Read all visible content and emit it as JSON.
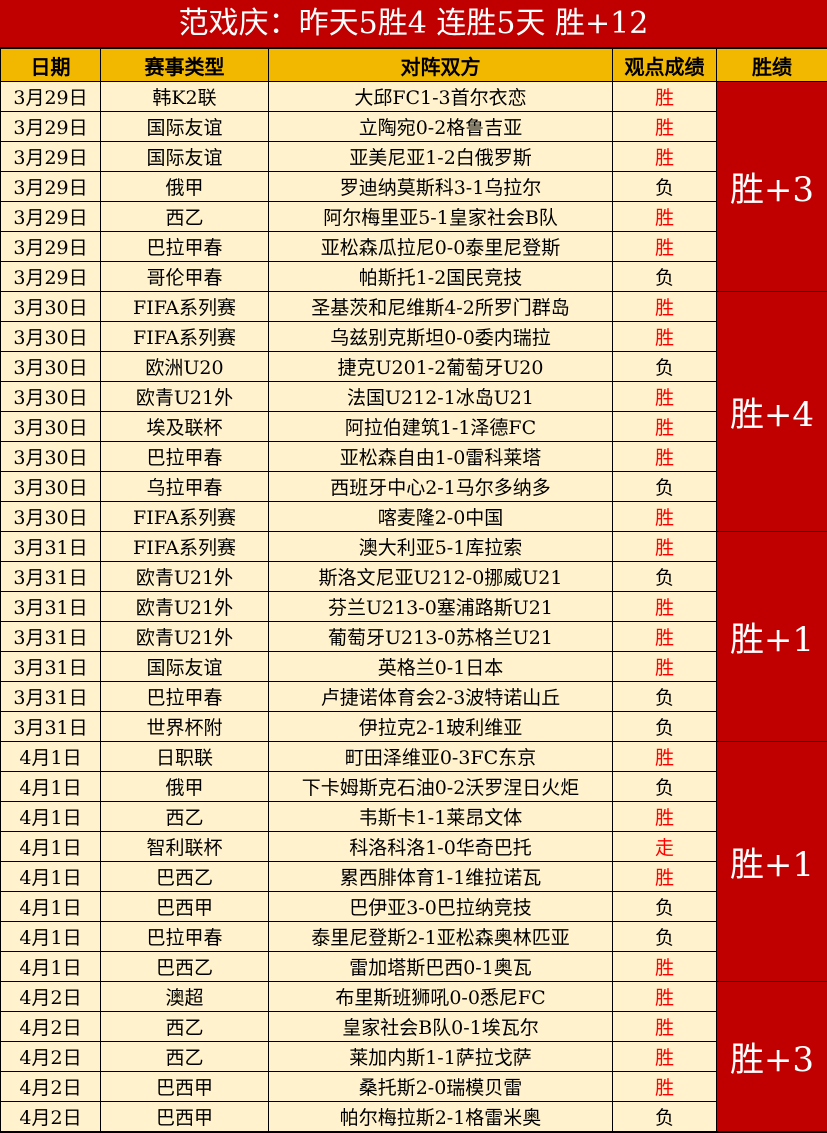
{
  "title": "范戏庆：昨天5胜4  连胜5天  胜+12",
  "headers": [
    "日期",
    "赛事类型",
    "对阵双方",
    "观点成绩",
    "胜绩"
  ],
  "colors": {
    "title_bg": "#c00000",
    "header_bg": "#f2b800",
    "row_bg": "#fff2cc",
    "win_text": "#ff0000"
  },
  "rows": [
    [
      "3月29日",
      "韩K2联",
      "大邱FC1-3首尔衣恋",
      "胜"
    ],
    [
      "3月29日",
      "国际友谊",
      "立陶宛0-2格鲁吉亚",
      "胜"
    ],
    [
      "3月29日",
      "国际友谊",
      "亚美尼亚1-2白俄罗斯",
      "胜"
    ],
    [
      "3月29日",
      "俄甲",
      "罗迪纳莫斯科3-1乌拉尔",
      "负"
    ],
    [
      "3月29日",
      "西乙",
      "阿尔梅里亚5-1皇家社会B队",
      "胜"
    ],
    [
      "3月29日",
      "巴拉甲春",
      "亚松森瓜拉尼0-0泰里尼登斯",
      "胜"
    ],
    [
      "3月29日",
      "哥伦甲春",
      "帕斯托1-2国民竞技",
      "负"
    ],
    [
      "3月30日",
      "FIFA系列赛",
      "圣基茨和尼维斯4-2所罗门群岛",
      "胜"
    ],
    [
      "3月30日",
      "FIFA系列赛",
      "乌兹别克斯坦0-0委内瑞拉",
      "胜"
    ],
    [
      "3月30日",
      "欧洲U20",
      "捷克U201-2葡萄牙U20",
      "负"
    ],
    [
      "3月30日",
      "欧青U21外",
      "法国U212-1冰岛U21",
      "胜"
    ],
    [
      "3月30日",
      "埃及联杯",
      "阿拉伯建筑1-1泽德FC",
      "胜"
    ],
    [
      "3月30日",
      "巴拉甲春",
      "亚松森自由1-0雷科莱塔",
      "胜"
    ],
    [
      "3月30日",
      "乌拉甲春",
      "西班牙中心2-1马尔多纳多",
      "负"
    ],
    [
      "3月30日",
      "FIFA系列赛",
      "喀麦隆2-0中国",
      "胜"
    ],
    [
      "3月31日",
      "FIFA系列赛",
      "澳大利亚5-1库拉索",
      "胜"
    ],
    [
      "3月31日",
      "欧青U21外",
      "斯洛文尼亚U212-0挪威U21",
      "负"
    ],
    [
      "3月31日",
      "欧青U21外",
      "芬兰U213-0塞浦路斯U21",
      "胜"
    ],
    [
      "3月31日",
      "欧青U21外",
      "葡萄牙U213-0苏格兰U21",
      "胜"
    ],
    [
      "3月31日",
      "国际友谊",
      "英格兰0-1日本",
      "胜"
    ],
    [
      "3月31日",
      "巴拉甲春",
      "卢捷诺体育会2-3波特诺山丘",
      "负"
    ],
    [
      "3月31日",
      "世界杯附",
      "伊拉克2-1玻利维亚",
      "负"
    ],
    [
      "4月1日",
      "日职联",
      "町田泽维亚0-3FC东京",
      "胜"
    ],
    [
      "4月1日",
      "俄甲",
      "下卡姆斯克石油0-2沃罗涅日火炬",
      "负"
    ],
    [
      "4月1日",
      "西乙",
      "韦斯卡1-1莱昂文体",
      "胜"
    ],
    [
      "4月1日",
      "智利联杯",
      "科洛科洛1-0华奇巴托",
      "走"
    ],
    [
      "4月1日",
      "巴西乙",
      "累西腓体育1-1维拉诺瓦",
      "胜"
    ],
    [
      "4月1日",
      "巴西甲",
      "巴伊亚3-0巴拉纳竞技",
      "负"
    ],
    [
      "4月1日",
      "巴拉甲春",
      "泰里尼登斯2-1亚松森奥林匹亚",
      "负"
    ],
    [
      "4月1日",
      "巴西乙",
      "雷加塔斯巴西0-1奥瓦",
      "胜"
    ],
    [
      "4月2日",
      "澳超",
      "布里斯班狮吼0-0悉尼FC",
      "胜"
    ],
    [
      "4月2日",
      "西乙",
      "皇家社会B队0-1埃瓦尔",
      "胜"
    ],
    [
      "4月2日",
      "西乙",
      "莱加内斯1-1萨拉戈萨",
      "胜"
    ],
    [
      "4月2日",
      "巴西甲",
      "桑托斯2-0瑞模贝雷",
      "胜"
    ],
    [
      "4月2日",
      "巴西甲",
      "帕尔梅拉斯2-1格雷米奥",
      "负"
    ]
  ],
  "groups": [
    {
      "label": "胜+3",
      "count": 7
    },
    {
      "label": "胜+4",
      "count": 8
    },
    {
      "label": "胜+1",
      "count": 7
    },
    {
      "label": "胜+1",
      "count": 8
    },
    {
      "label": "胜+3",
      "count": 5
    }
  ]
}
